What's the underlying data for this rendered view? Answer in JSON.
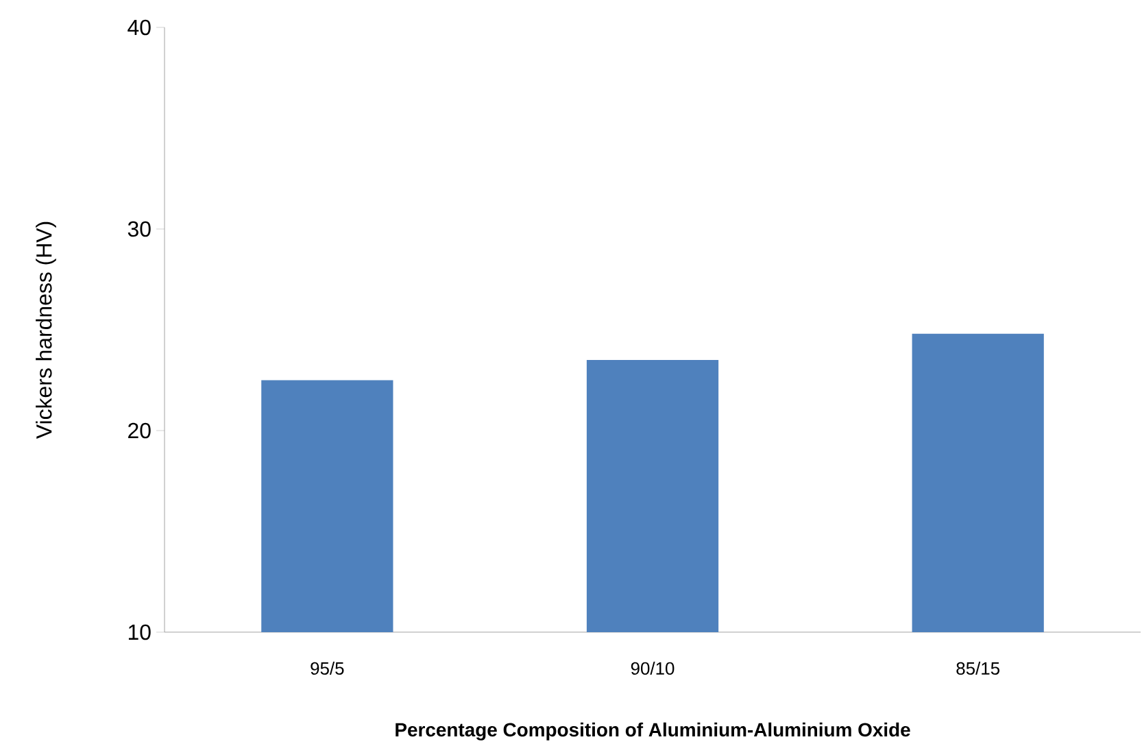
{
  "chart_data": {
    "type": "bar",
    "xlabel": "Percentage Composition of Aluminium-Aluminium  Oxide",
    "ylabel": "Vickers  hardness (HV)",
    "categories": [
      "95/5",
      "90/10",
      "85/15"
    ],
    "values": [
      22.5,
      23.5,
      24.8
    ],
    "color": "#4f81bd",
    "ylim": [
      10,
      40
    ],
    "yticks": [
      10,
      20,
      30,
      40
    ],
    "grid": false
  }
}
